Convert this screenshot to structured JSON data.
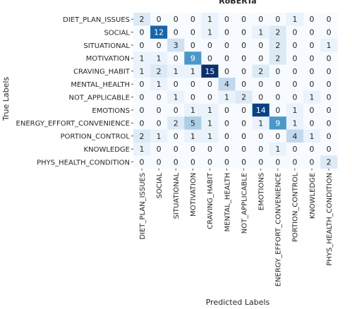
{
  "chart_data": {
    "type": "heatmap",
    "title": "RoBERTa",
    "xlabel": "Predicted Labels",
    "ylabel": "True Labels",
    "row_labels": [
      "DIET_PLAN_ISSUES",
      "SOCIAL",
      "SITUATIONAL",
      "MOTIVATION",
      "CRAVING_HABIT",
      "MENTAL_HEALTH",
      "NOT_APPLICABLE",
      "EMOTIONS",
      "ENERGY_EFFORT_CONVENIENCE",
      "PORTION_CONTROL",
      "KNOWLEDGE",
      "PHYS_HEALTH_CONDITION"
    ],
    "col_labels": [
      "DIET_PLAN_ISSUES",
      "SOCIAL",
      "SITUATIONAL",
      "MOTIVATION",
      "CRAVING_HABIT",
      "MENTAL_HEALTH",
      "NOT_APPLICABLE",
      "EMOTIONS",
      "ENERGY_EFFORT_CONVENIENCE",
      "PORTION_CONTROL",
      "KNOWLEDGE",
      "PHYS_HEALTH_CONDITION"
    ],
    "values": [
      [
        2,
        0,
        0,
        0,
        1,
        0,
        0,
        0,
        0,
        1,
        0,
        0
      ],
      [
        0,
        12,
        0,
        0,
        1,
        0,
        0,
        1,
        2,
        0,
        0,
        0
      ],
      [
        0,
        0,
        3,
        0,
        0,
        0,
        0,
        0,
        2,
        0,
        0,
        1
      ],
      [
        1,
        1,
        0,
        9,
        0,
        0,
        0,
        0,
        2,
        0,
        0,
        0
      ],
      [
        1,
        2,
        1,
        1,
        15,
        0,
        0,
        2,
        0,
        0,
        0,
        0
      ],
      [
        0,
        1,
        0,
        0,
        0,
        4,
        0,
        0,
        0,
        0,
        0,
        0
      ],
      [
        0,
        0,
        1,
        0,
        0,
        1,
        2,
        0,
        0,
        0,
        1,
        0
      ],
      [
        0,
        0,
        0,
        1,
        1,
        0,
        0,
        14,
        0,
        1,
        0,
        0
      ],
      [
        0,
        0,
        2,
        5,
        1,
        0,
        0,
        1,
        9,
        1,
        0,
        0
      ],
      [
        2,
        1,
        0,
        1,
        1,
        0,
        0,
        0,
        0,
        4,
        1,
        0
      ],
      [
        1,
        0,
        0,
        0,
        0,
        0,
        0,
        0,
        1,
        0,
        0,
        0
      ],
      [
        0,
        0,
        0,
        0,
        0,
        0,
        0,
        0,
        0,
        0,
        0,
        2
      ]
    ],
    "vmin": 0,
    "vmax": 15,
    "colormap": "Blues"
  }
}
